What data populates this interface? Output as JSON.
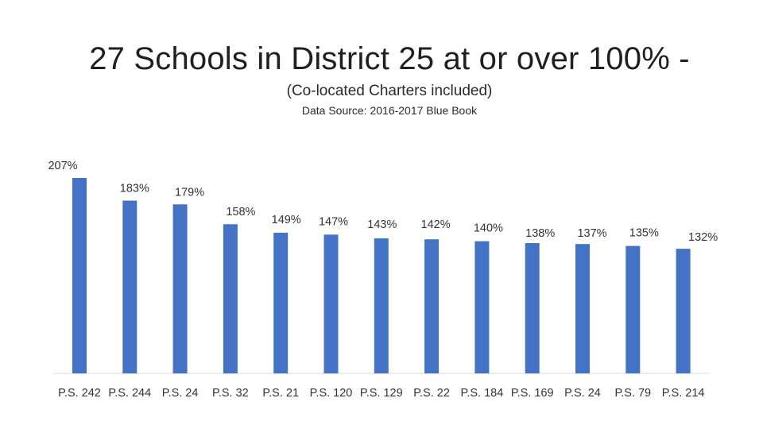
{
  "slide": {
    "title": "27 Schools in District 25 at or over 100% -",
    "subtitle": "(Co-located Charters included)",
    "source": "Data Source: 2016-2017 Blue Book"
  },
  "chart_data": {
    "type": "bar",
    "categories": [
      "P.S. 242",
      "P.S. 244",
      "P.S. 24",
      "P.S. 32",
      "P.S. 21",
      "P.S. 120",
      "P.S. 129",
      "P.S. 22",
      "P.S. 184",
      "P.S. 169",
      "P.S. 24",
      "P.S. 79",
      "P.S. 214"
    ],
    "values": [
      207,
      183,
      179,
      158,
      149,
      147,
      143,
      142,
      140,
      138,
      137,
      135,
      132
    ],
    "data_labels": [
      "207%",
      "183%",
      "179%",
      "158%",
      "149%",
      "147%",
      "143%",
      "142%",
      "140%",
      "138%",
      "137%",
      "135%",
      "132%"
    ],
    "ylim": [
      0,
      207
    ],
    "grid": false,
    "legend": "none",
    "bar_color": "#4472C4",
    "axis_color": "#d9d9d9"
  }
}
